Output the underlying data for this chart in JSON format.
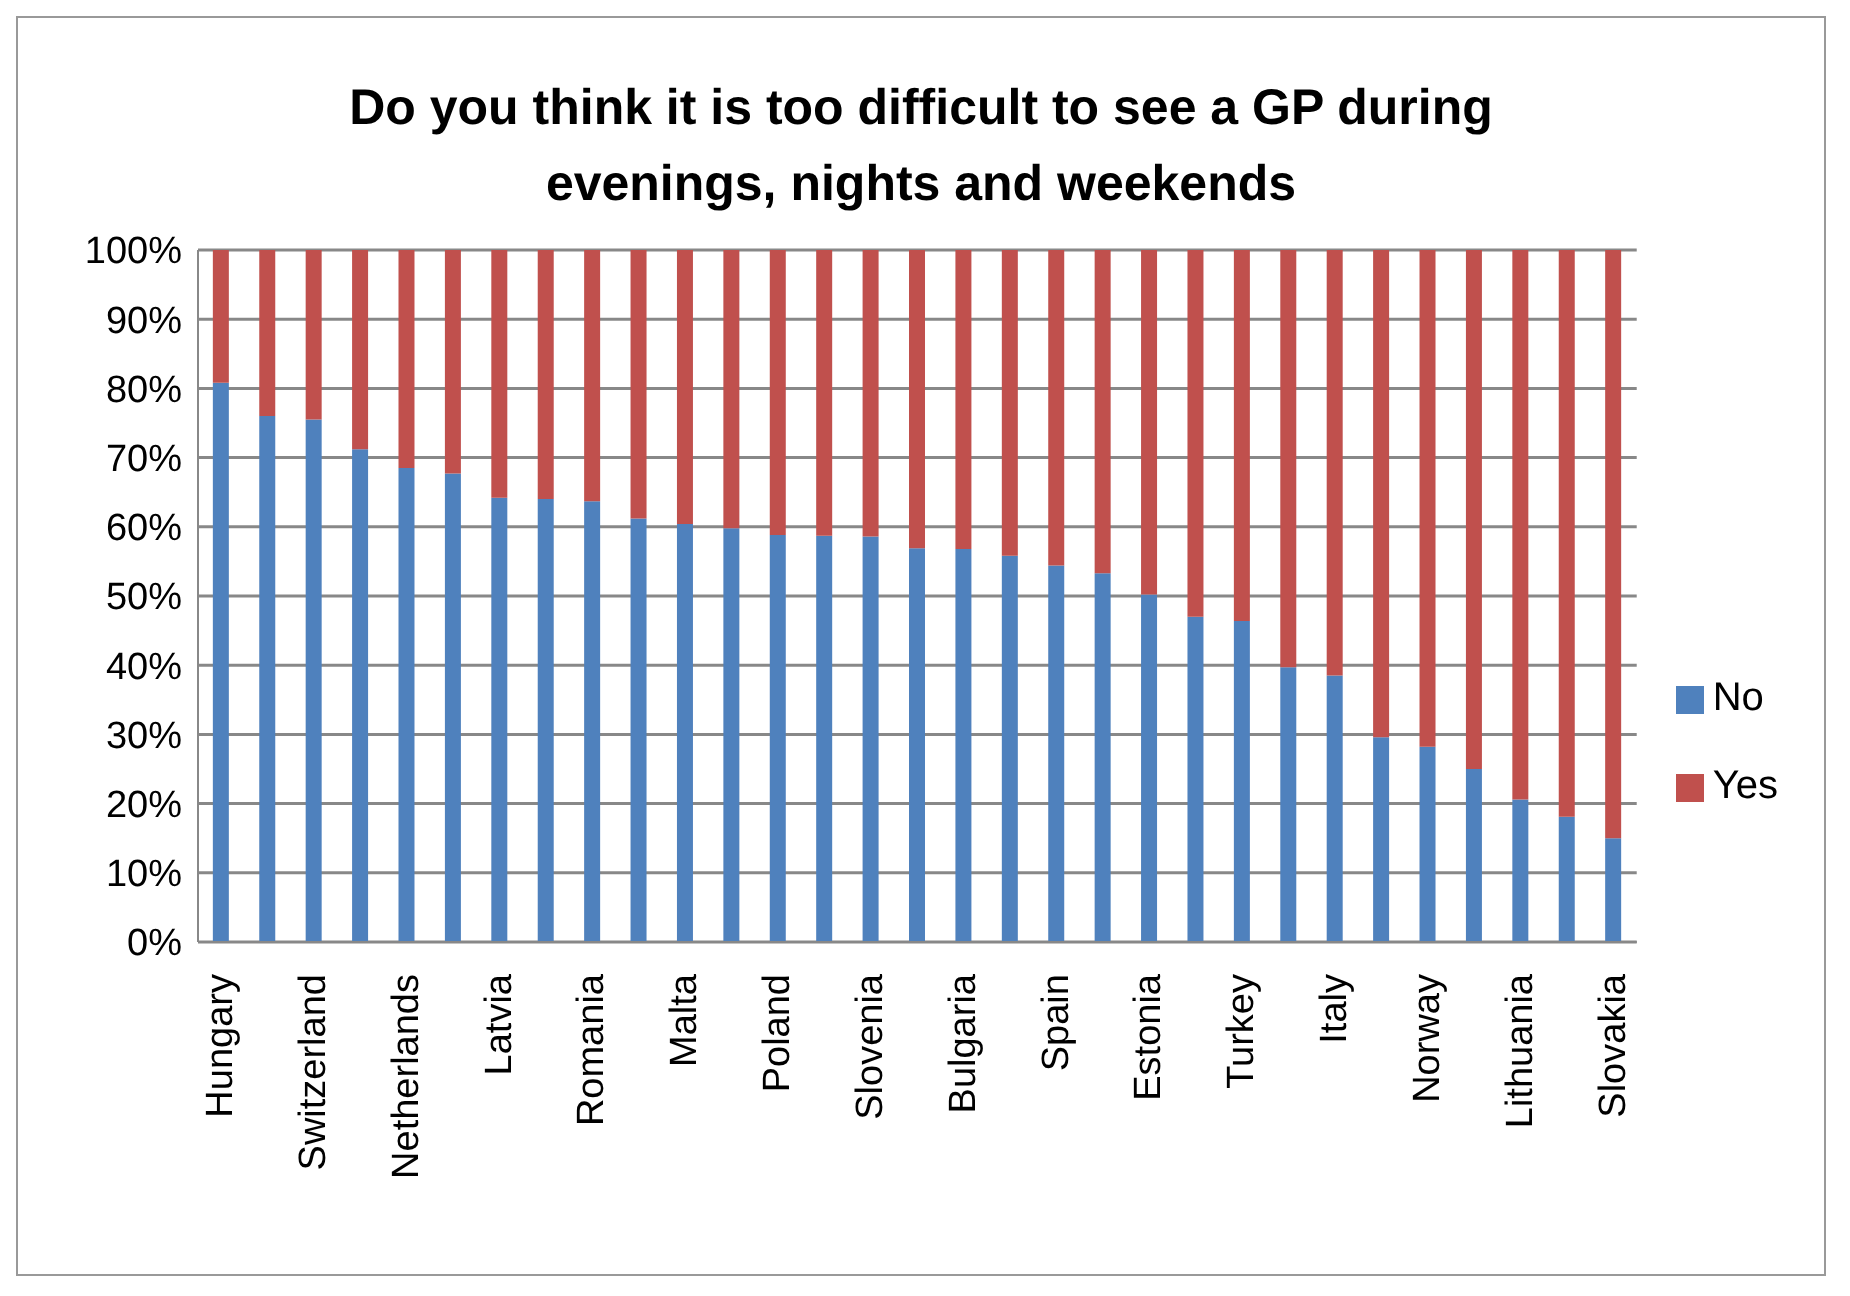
{
  "chart_data": {
    "type": "bar",
    "stacked": true,
    "title": "Do you think it is too difficult to see a GP during evenings, nights and weekends",
    "categories": [
      "Hungary",
      null,
      "Switzerland",
      null,
      "Netherlands",
      null,
      "Latvia",
      null,
      "Romania",
      null,
      "Malta",
      null,
      "Poland",
      null,
      "Slovenia",
      null,
      "Bulgaria",
      null,
      "Spain",
      null,
      "Estonia",
      null,
      "Turkey",
      null,
      "Italy",
      null,
      "Norway",
      null,
      "Lithuania",
      null,
      "Slovakia"
    ],
    "series": [
      {
        "name": "No",
        "color": "#4f81bd",
        "values": [
          80.8,
          76,
          75.5,
          71.2,
          68.5,
          67.7,
          64.2,
          64,
          63.7,
          61.2,
          60.4,
          59.8,
          58.8,
          58.7,
          58.6,
          56.9,
          56.8,
          55.8,
          54.4,
          53.3,
          50.2,
          47,
          46.4,
          39.7,
          38.5,
          29.6,
          28.2,
          25,
          20.6,
          18.1,
          15
        ]
      },
      {
        "name": "Yes",
        "color": "#c0504d",
        "values": [
          19.2,
          24,
          24.5,
          28.8,
          31.5,
          32.3,
          35.8,
          36,
          36.3,
          38.8,
          39.6,
          40.2,
          41.2,
          41.3,
          41.4,
          43.1,
          43.2,
          44.2,
          45.6,
          46.7,
          49.8,
          53,
          53.6,
          60.3,
          61.5,
          70.4,
          71.8,
          75,
          79.4,
          81.9,
          85
        ]
      }
    ],
    "ylim": [
      0,
      100
    ],
    "yticks": [
      {
        "value": 0,
        "label": "0%"
      },
      {
        "value": 10,
        "label": "10%"
      },
      {
        "value": 20,
        "label": "20%"
      },
      {
        "value": 30,
        "label": "30%"
      },
      {
        "value": 40,
        "label": "40%"
      },
      {
        "value": 50,
        "label": "50%"
      },
      {
        "value": 60,
        "label": "60%"
      },
      {
        "value": 70,
        "label": "70%"
      },
      {
        "value": 80,
        "label": "80%"
      },
      {
        "value": 90,
        "label": "90%"
      },
      {
        "value": 100,
        "label": "100%"
      }
    ],
    "grid": "y",
    "legend": "right"
  }
}
